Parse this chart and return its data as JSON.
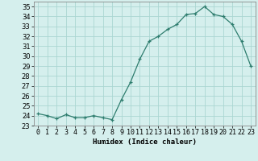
{
  "x": [
    0,
    1,
    2,
    3,
    4,
    5,
    6,
    7,
    8,
    9,
    10,
    11,
    12,
    13,
    14,
    15,
    16,
    17,
    18,
    19,
    20,
    21,
    22,
    23
  ],
  "y": [
    24.2,
    24.0,
    23.7,
    24.1,
    23.8,
    23.8,
    24.0,
    23.8,
    23.6,
    25.6,
    27.4,
    29.7,
    31.5,
    32.0,
    32.7,
    33.2,
    34.2,
    34.3,
    35.0,
    34.2,
    34.0,
    33.2,
    31.5,
    29.0
  ],
  "line_color": "#2e7d6e",
  "marker": "+",
  "background_color": "#d5efed",
  "grid_color": "#aad6d2",
  "xlabel": "Humidex (Indice chaleur)",
  "ylabel": "",
  "xlim": [
    -0.5,
    23.5
  ],
  "ylim": [
    23.0,
    35.5
  ],
  "yticks": [
    23,
    24,
    25,
    26,
    27,
    28,
    29,
    30,
    31,
    32,
    33,
    34,
    35
  ],
  "xtick_labels": [
    "0",
    "1",
    "2",
    "3",
    "4",
    "5",
    "6",
    "7",
    "8",
    "9",
    "10",
    "11",
    "12",
    "13",
    "14",
    "15",
    "16",
    "17",
    "18",
    "19",
    "20",
    "21",
    "22",
    "23"
  ],
  "label_fontsize": 6.5,
  "tick_fontsize": 6.0
}
